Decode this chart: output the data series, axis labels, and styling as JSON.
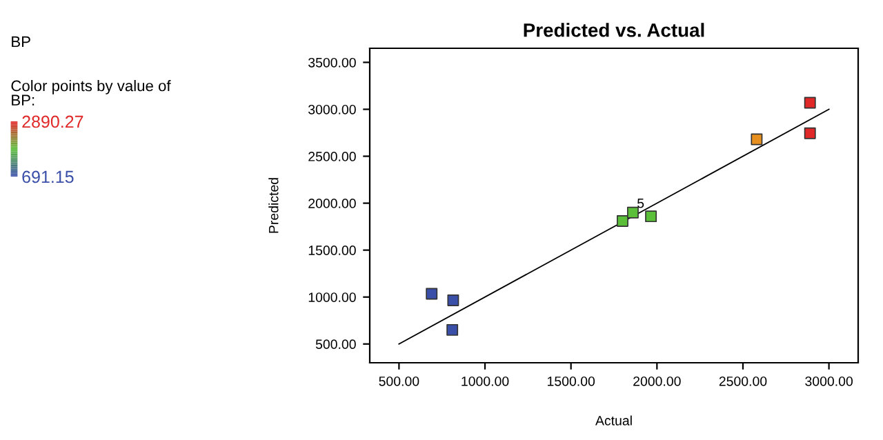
{
  "chart_data": {
    "type": "scatter",
    "title": "Predicted vs. Actual",
    "xlabel": "Actual",
    "ylabel": "Predicted",
    "annotations": [
      "BP",
      "Color points by value of\nBP:",
      {
        "text": "5",
        "x": 1905,
        "y": 1880
      }
    ],
    "x": [
      690,
      815,
      810,
      1800,
      1860,
      1965,
      2580,
      2890,
      2890
    ],
    "series": [
      {
        "values": [
          1035,
          965,
          650,
          1810,
          1900,
          1860,
          2680,
          3070,
          2745
        ],
        "colors": [
          "#3a4fa8",
          "#3a4fa8",
          "#3a4fa8",
          "#5cbf3a",
          "#5cbf3a",
          "#5cbf3a",
          "#e8901f",
          "#e02828",
          "#e02828"
        ],
        "marker": "square"
      },
      {
        "type": "line",
        "x": [
          500,
          3000
        ],
        "values": [
          500,
          3000
        ],
        "color": "#000000",
        "marker": "none",
        "line_style": "solid"
      }
    ],
    "clim": [
      691.15,
      2890.27
    ],
    "cticks": [
      {
        "value": 2890.27,
        "label": "2890.27"
      },
      {
        "value": 691.15,
        "label": "691.15"
      }
    ],
    "xlim": [
      330,
      3170
    ],
    "ylim": [
      300,
      3650
    ],
    "xticks": [
      {
        "value": 500,
        "label": "500.00"
      },
      {
        "value": 1000,
        "label": "1000.00"
      },
      {
        "value": 1500,
        "label": "1500.00"
      },
      {
        "value": 2000,
        "label": "2000.00"
      },
      {
        "value": 2500,
        "label": "2500.00"
      },
      {
        "value": 3000,
        "label": "3000.00"
      }
    ],
    "yticks": [
      {
        "value": 500,
        "label": "500.00"
      },
      {
        "value": 1000,
        "label": "1000.00"
      },
      {
        "value": 1500,
        "label": "1500.00"
      },
      {
        "value": 2000,
        "label": "2000.00"
      },
      {
        "value": 2500,
        "label": "2500.00"
      },
      {
        "value": 3000,
        "label": "3000.00"
      },
      {
        "value": 3500,
        "label": "3500.00"
      }
    ],
    "grid": false,
    "legend": false
  }
}
